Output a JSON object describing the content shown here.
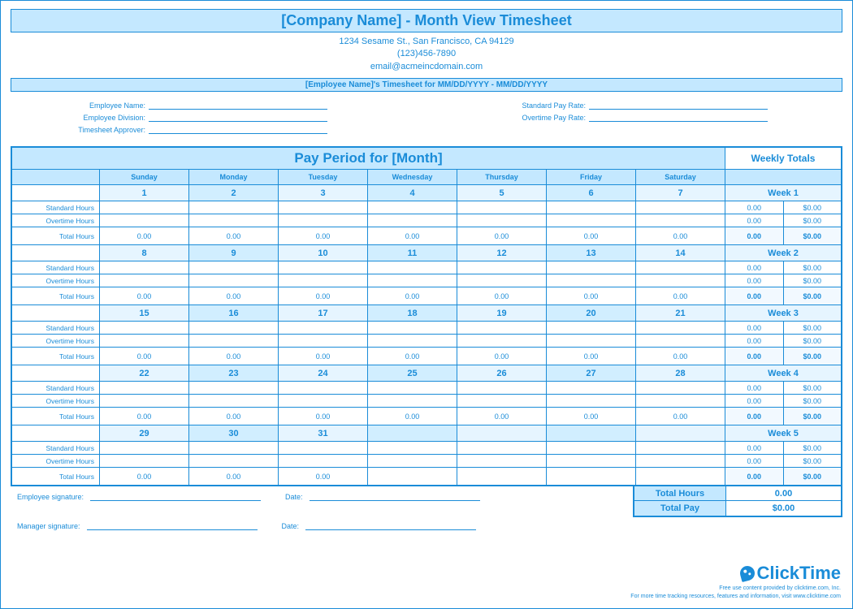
{
  "header": {
    "title": "[Company Name] - Month View Timesheet",
    "address": "1234 Sesame St.,  San Francisco, CA 94129",
    "phone": "(123)456-7890",
    "email": "email@acmeincdomain.com",
    "subtitle": "[Employee Name]'s Timesheet for MM/DD/YYYY - MM/DD/YYYY"
  },
  "info": {
    "emp_name_lbl": "Employee Name:",
    "emp_div_lbl": "Employee Division:",
    "ts_appr_lbl": "Timesheet Approver:",
    "std_rate_lbl": "Standard Pay Rate:",
    "ot_rate_lbl": "Overtime Pay Rate:"
  },
  "grid": {
    "pay_title": "Pay Period for [Month]",
    "weekly_title": "Weekly Totals",
    "days": [
      "Sunday",
      "Monday",
      "Tuesday",
      "Wednesday",
      "Thursday",
      "Friday",
      "Saturday"
    ],
    "row_labels": {
      "std": "Standard Hours",
      "ot": "Overtime Hours",
      "tot": "Total Hours"
    },
    "weeks": [
      {
        "label": "Week 1",
        "dates": [
          "1",
          "2",
          "3",
          "4",
          "5",
          "6",
          "7"
        ],
        "totals": [
          "0.00",
          "0.00",
          "0.00",
          "0.00",
          "0.00",
          "0.00",
          "0.00"
        ],
        "wk_std_h": "0.00",
        "wk_std_p": "$0.00",
        "wk_ot_h": "0.00",
        "wk_ot_p": "$0.00",
        "wk_tot_h": "0.00",
        "wk_tot_p": "$0.00"
      },
      {
        "label": "Week 2",
        "dates": [
          "8",
          "9",
          "10",
          "11",
          "12",
          "13",
          "14"
        ],
        "totals": [
          "0.00",
          "0.00",
          "0.00",
          "0.00",
          "0.00",
          "0.00",
          "0.00"
        ],
        "wk_std_h": "0.00",
        "wk_std_p": "$0.00",
        "wk_ot_h": "0.00",
        "wk_ot_p": "$0.00",
        "wk_tot_h": "0.00",
        "wk_tot_p": "$0.00"
      },
      {
        "label": "Week 3",
        "dates": [
          "15",
          "16",
          "17",
          "18",
          "19",
          "20",
          "21"
        ],
        "totals": [
          "0.00",
          "0.00",
          "0.00",
          "0.00",
          "0.00",
          "0.00",
          "0.00"
        ],
        "wk_std_h": "0.00",
        "wk_std_p": "$0.00",
        "wk_ot_h": "0.00",
        "wk_ot_p": "$0.00",
        "wk_tot_h": "0.00",
        "wk_tot_p": "$0.00"
      },
      {
        "label": "Week 4",
        "dates": [
          "22",
          "23",
          "24",
          "25",
          "26",
          "27",
          "28"
        ],
        "totals": [
          "0.00",
          "0.00",
          "0.00",
          "0.00",
          "0.00",
          "0.00",
          "0.00"
        ],
        "wk_std_h": "0.00",
        "wk_std_p": "$0.00",
        "wk_ot_h": "0.00",
        "wk_ot_p": "$0.00",
        "wk_tot_h": "0.00",
        "wk_tot_p": "$0.00"
      },
      {
        "label": "Week 5",
        "dates": [
          "29",
          "30",
          "31",
          "",
          "",
          "",
          ""
        ],
        "totals": [
          "0.00",
          "0.00",
          "0.00",
          "",
          "",
          "",
          ""
        ],
        "wk_std_h": "0.00",
        "wk_std_p": "$0.00",
        "wk_ot_h": "0.00",
        "wk_ot_p": "$0.00",
        "wk_tot_h": "0.00",
        "wk_tot_p": "$0.00"
      }
    ]
  },
  "summary": {
    "hours_lbl": "Total Hours",
    "hours_val": "0.00",
    "pay_lbl": "Total Pay",
    "pay_val": "$0.00"
  },
  "sign": {
    "emp": "Employee signature:",
    "mgr": "Manager signature:",
    "date": "Date:"
  },
  "brand": {
    "name": "ClickTime",
    "line1": "Free use content provided by clicktime.com, Inc.",
    "line2": "For more time tracking resources, features and information, visit www.clicktime.com"
  }
}
